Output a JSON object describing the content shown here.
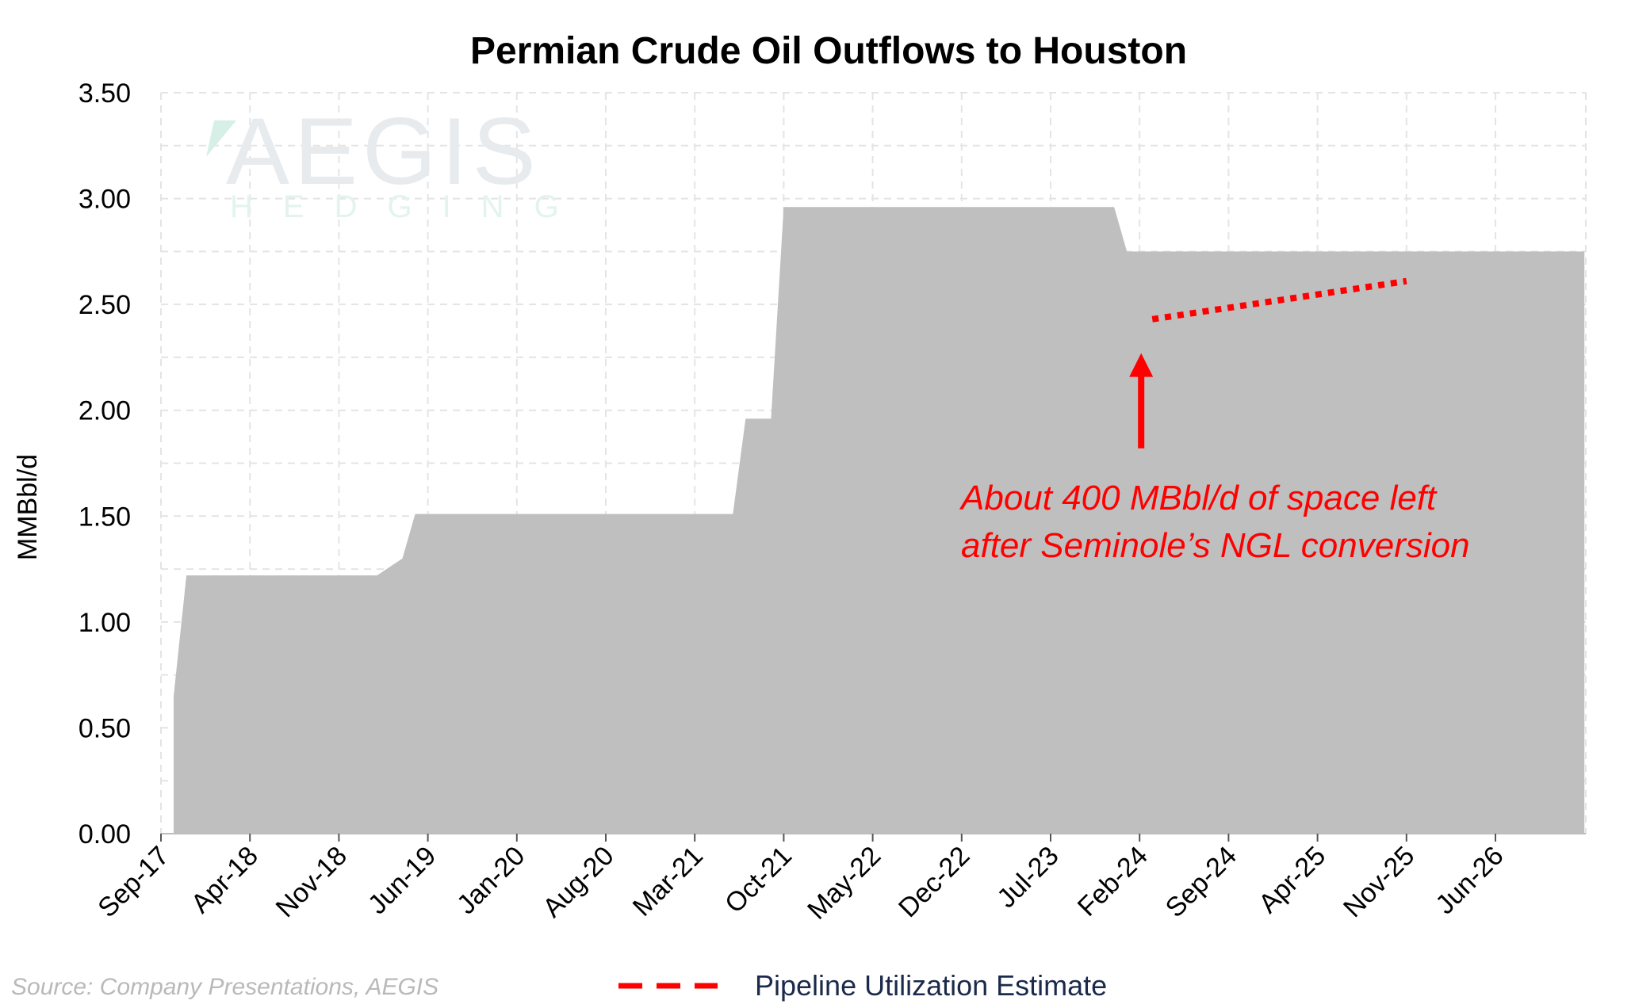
{
  "chart_data": {
    "type": "area",
    "title": "Permian Crude Oil Outflows to Houston",
    "xlabel": "",
    "ylabel": "MMBbl/d",
    "ylim": [
      0,
      3.5
    ],
    "yticks": [
      "0.00",
      "0.50",
      "1.00",
      "1.50",
      "2.00",
      "2.50",
      "3.00",
      "3.50"
    ],
    "xticks": [
      "Sep-17",
      "Apr-18",
      "Nov-18",
      "Jun-19",
      "Jan-20",
      "Aug-20",
      "Mar-21",
      "Oct-21",
      "May-22",
      "Dec-22",
      "Jul-23",
      "Feb-24",
      "Sep-24",
      "Apr-25",
      "Nov-25",
      "Jun-26"
    ],
    "grid": true,
    "colors": {
      "area": "#bfbfbf",
      "estimate": "#ff0000",
      "annotation": "#ff0000",
      "arrow": "#ff0000"
    },
    "series": [
      {
        "values": [
          [
            "2017-10",
            0.65
          ],
          [
            "2017-11",
            1.22
          ],
          [
            "2019-02",
            1.22
          ],
          [
            "2019-04",
            1.3
          ],
          [
            "2019-05",
            1.51
          ],
          [
            "2021-06",
            1.51
          ],
          [
            "2021-07",
            1.96
          ],
          [
            "2021-09",
            1.96
          ],
          [
            "2021-10",
            2.96
          ],
          [
            "2023-12",
            2.96
          ],
          [
            "2024-01",
            2.75
          ],
          [
            "2027-01",
            2.75
          ]
        ]
      },
      {
        "name": "Pipeline Utilization Estimate",
        "style": "dotted",
        "values": [
          [
            "2024-03",
            2.43
          ],
          [
            "2025-11",
            2.61
          ]
        ]
      }
    ],
    "annotation": {
      "lines": [
        "About 400 MBbl/d of space left",
        "after Seminole’s NGL conversion"
      ],
      "arrow_x": "2024-02",
      "arrow_from": 1.82,
      "arrow_to": 2.27
    },
    "legend": {
      "position": "bottom-center",
      "label": "Pipeline Utilization Estimate"
    },
    "source": "Source: Company Presentations, AEGIS"
  },
  "watermark": {
    "brand": "AEGIS",
    "sub": "HEDGING"
  }
}
